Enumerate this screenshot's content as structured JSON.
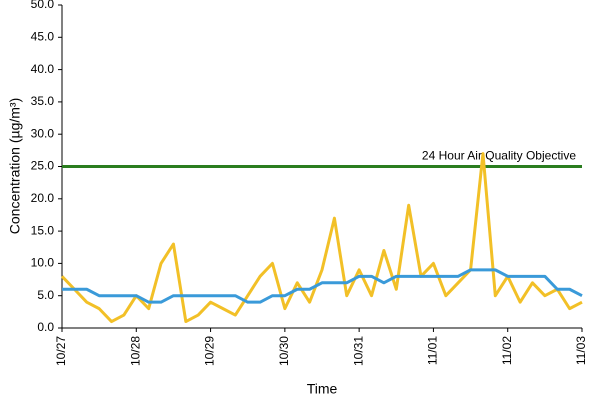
{
  "chart_data": {
    "type": "line",
    "ylabel": "Concentration (µg/m³)",
    "xlabel": "Time",
    "xlim": [
      0,
      7
    ],
    "xticks": [
      {
        "value": 0,
        "label": "10/27"
      },
      {
        "value": 1,
        "label": "10/28"
      },
      {
        "value": 2,
        "label": "10/29"
      },
      {
        "value": 3,
        "label": "10/30"
      },
      {
        "value": 4,
        "label": "10/31"
      },
      {
        "value": 5,
        "label": "11/01"
      },
      {
        "value": 6,
        "label": "11/02"
      },
      {
        "value": 7,
        "label": "11/03"
      }
    ],
    "ylim": [
      0,
      50
    ],
    "yticks": [
      {
        "value": 0,
        "label": "0.0"
      },
      {
        "value": 5,
        "label": "5.0"
      },
      {
        "value": 10,
        "label": "10.0"
      },
      {
        "value": 15,
        "label": "15.0"
      },
      {
        "value": 20,
        "label": "20.0"
      },
      {
        "value": 25,
        "label": "25.0"
      },
      {
        "value": 30,
        "label": "30.0"
      },
      {
        "value": 35,
        "label": "35.0"
      },
      {
        "value": 40,
        "label": "40.0"
      },
      {
        "value": 45,
        "label": "45.0"
      },
      {
        "value": 50,
        "label": "50.0"
      }
    ],
    "x": [
      0,
      0.167,
      0.333,
      0.5,
      0.667,
      0.833,
      1,
      1.167,
      1.333,
      1.5,
      1.667,
      1.833,
      2,
      2.167,
      2.333,
      2.5,
      2.667,
      2.833,
      3,
      3.167,
      3.333,
      3.5,
      3.667,
      3.833,
      4,
      4.167,
      4.333,
      4.5,
      4.667,
      4.833,
      5,
      5.167,
      5.333,
      5.5,
      5.667,
      5.833,
      6,
      6.167,
      6.333,
      6.5,
      6.667,
      6.833,
      7
    ],
    "series": [
      {
        "color": "#f2c027",
        "values": [
          8,
          6,
          4,
          3,
          1,
          2,
          5,
          3,
          10,
          13,
          1,
          2,
          4,
          3,
          2,
          5,
          8,
          10,
          3,
          7,
          4,
          9,
          17,
          5,
          9,
          5,
          12,
          6,
          19,
          8,
          10,
          5,
          7,
          9,
          27,
          5,
          8,
          4,
          7,
          5,
          6,
          3,
          4
        ]
      },
      {
        "color": "#3a9ad9",
        "values": [
          6,
          6,
          6,
          5,
          5,
          5,
          5,
          4,
          4,
          5,
          5,
          5,
          5,
          5,
          5,
          4,
          4,
          5,
          5,
          6,
          6,
          7,
          7,
          7,
          8,
          8,
          7,
          8,
          8,
          8,
          8,
          8,
          8,
          9,
          9,
          9,
          8,
          8,
          8,
          8,
          6,
          6,
          5
        ]
      }
    ],
    "objective": {
      "value": 25,
      "label": "24 Hour Air Quality Objective",
      "color": "#2a7d1f"
    }
  }
}
